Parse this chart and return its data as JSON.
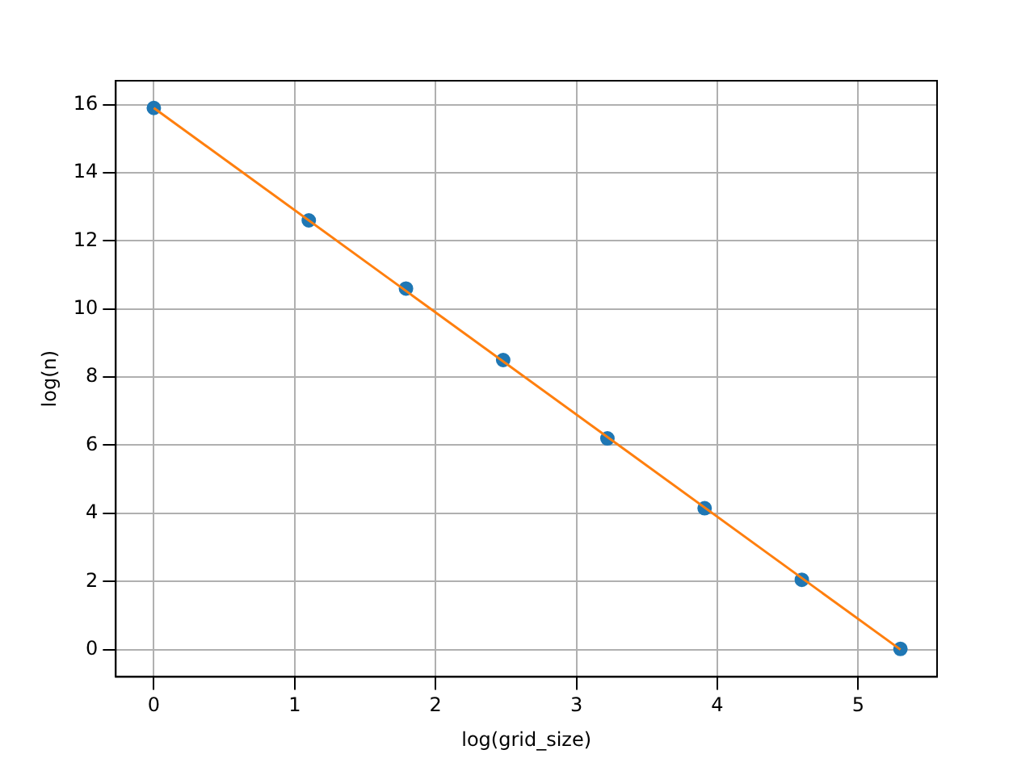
{
  "chart_data": {
    "type": "scatter",
    "xlabel": "log(grid_size)",
    "ylabel": "log(n)",
    "xlim": [
      -0.27,
      5.56
    ],
    "xticks": [
      0,
      1,
      2,
      3,
      4,
      5
    ],
    "ylim": [
      -0.8,
      16.7
    ],
    "yticks": [
      0,
      2,
      4,
      6,
      8,
      10,
      12,
      14,
      16
    ],
    "grid": true,
    "legend": false,
    "marker": "circle",
    "series": [
      {
        "color": "#1f77b4",
        "x": [
          0,
          1.1,
          1.79,
          2.48,
          3.22,
          3.91,
          4.6,
          5.3
        ],
        "values": [
          15.9,
          12.6,
          10.6,
          8.5,
          6.2,
          4.15,
          2.05,
          0.02
        ]
      },
      {
        "type": "line",
        "marker": "none",
        "color": "#ff7f0e",
        "x": [
          0,
          5.3
        ],
        "values": [
          15.9,
          0.0
        ]
      }
    ]
  }
}
